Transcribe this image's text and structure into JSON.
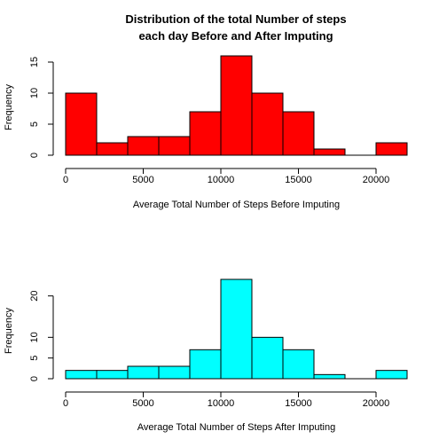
{
  "figure": {
    "title_line1": "Distribution of the total Number of steps",
    "title_line2": "each day Before and After Imputing"
  },
  "chart_data": [
    {
      "type": "bar",
      "subtype": "histogram",
      "bin_edges": [
        0,
        2000,
        4000,
        6000,
        8000,
        10000,
        12000,
        14000,
        16000,
        18000,
        20000,
        22000
      ],
      "values": [
        10,
        2,
        3,
        3,
        7,
        16,
        10,
        7,
        1,
        0,
        2
      ],
      "color": "#ff0000",
      "xlabel": "Average Total Number of Steps Before Imputing",
      "ylabel": "Frequency",
      "xticks": [
        0,
        5000,
        10000,
        15000,
        20000
      ],
      "xtick_labels": [
        "0",
        "5000",
        "10000",
        "15000",
        "20000"
      ],
      "yticks": [
        0,
        5,
        10,
        15
      ],
      "ytick_labels": [
        "0",
        "5",
        "10",
        "15"
      ],
      "xlim": [
        0,
        22000
      ],
      "ylim": [
        0,
        16
      ],
      "grid": false
    },
    {
      "type": "bar",
      "subtype": "histogram",
      "bin_edges": [
        0,
        2000,
        4000,
        6000,
        8000,
        10000,
        12000,
        14000,
        16000,
        18000,
        20000,
        22000
      ],
      "values": [
        2,
        2,
        3,
        3,
        7,
        24,
        10,
        7,
        1,
        0,
        2
      ],
      "color": "#00ffff",
      "xlabel": "Average Total Number of Steps After Imputing",
      "ylabel": "Frequency",
      "xticks": [
        0,
        5000,
        10000,
        15000,
        20000
      ],
      "xtick_labels": [
        "0",
        "5000",
        "10000",
        "15000",
        "20000"
      ],
      "yticks": [
        0,
        5,
        10,
        20
      ],
      "ytick_labels": [
        "0",
        "5",
        "10",
        "20"
      ],
      "xlim": [
        0,
        22000
      ],
      "ylim": [
        0,
        24
      ],
      "grid": false
    }
  ]
}
